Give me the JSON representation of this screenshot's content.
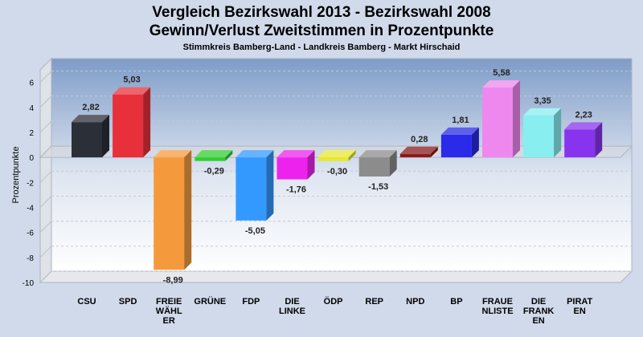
{
  "chart_data": {
    "type": "bar",
    "title": "Vergleich Bezirkswahl 2013 - Bezirkswahl 2008",
    "title2": "Gewinn/Verlust Zweitstimmen in Prozentpunkte",
    "subtitle": "Stimmkreis Bamberg-Land - Landkreis Bamberg - Markt Hirschaid",
    "ylabel": "Prozentpunkte",
    "ylim": [
      -10,
      7
    ],
    "yticks": [
      6,
      4,
      2,
      0,
      -2,
      -4,
      -6,
      -8,
      -10
    ],
    "grid": true,
    "categories": [
      [
        "CSU"
      ],
      [
        "SPD"
      ],
      [
        "FREIE",
        "WÄHL",
        "ER"
      ],
      [
        "GRÜNE"
      ],
      [
        "FDP"
      ],
      [
        "DIE",
        "LINKE"
      ],
      [
        "ÖDP"
      ],
      [
        "REP"
      ],
      [
        "NPD"
      ],
      [
        "BP"
      ],
      [
        "FRAUE",
        "NLISTE"
      ],
      [
        "DIE",
        "FRANK",
        "EN"
      ],
      [
        "PIRAT",
        "EN"
      ]
    ],
    "values": [
      2.82,
      5.03,
      -8.99,
      -0.29,
      -5.05,
      -1.76,
      -0.3,
      -1.53,
      0.28,
      1.81,
      5.58,
      3.35,
      2.23
    ],
    "value_labels": [
      "2,82",
      "5,03",
      "-8,99",
      "-0,29",
      "-5,05",
      "-1,76",
      "-0,30",
      "-1,53",
      "0,28",
      "1,81",
      "5,58",
      "3,35",
      "2,23"
    ],
    "colors": [
      "#2b2f38",
      "#e8303a",
      "#f59a3c",
      "#33cc33",
      "#3399ff",
      "#ee22ee",
      "#e8e833",
      "#8c8c8c",
      "#8b1a1a",
      "#2a2ae8",
      "#ee88ee",
      "#88eef0",
      "#8833ee"
    ]
  }
}
